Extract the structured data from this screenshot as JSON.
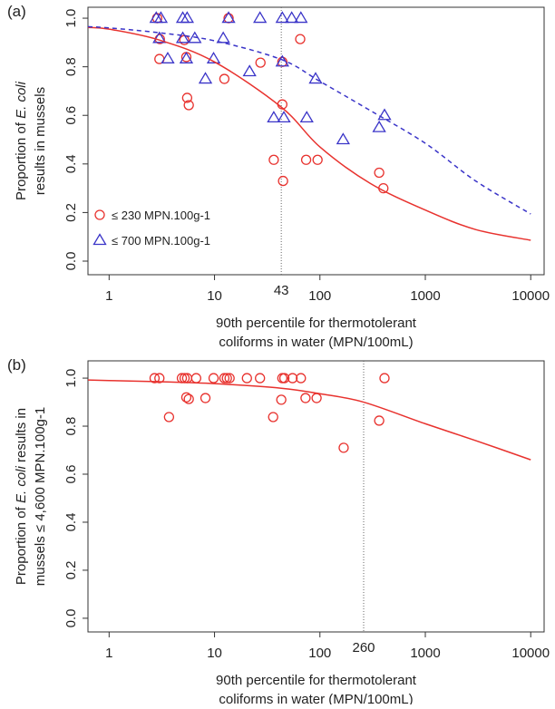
{
  "chart_data": [
    {
      "type": "scatter",
      "label": "(a)",
      "y_label": [
        [
          {
            "text": "Proportion of"
          },
          {
            "text": "E. coli",
            "italic": true
          }
        ],
        [
          {
            "text": "results in mussels"
          }
        ]
      ],
      "x_label": [
        "90th percentile for thermotolerant",
        "coliforms in water (MPN/100mL)"
      ],
      "log_x": true,
      "xlim": [
        0.63,
        13400
      ],
      "ylim": [
        -0.056,
        1.045
      ],
      "xticks": [
        1,
        10,
        100,
        1000,
        10000
      ],
      "yticks": [
        {
          "value": 0,
          "label": "0.0"
        },
        0.2,
        0.4,
        0.6,
        0.8,
        {
          "value": 1,
          "label": "1.0"
        }
      ],
      "vline": 43,
      "legend": "lower left",
      "series": [
        {
          "name": "≤ 230 MPN.100g-1",
          "color": "#e8322e",
          "marker": "circle",
          "x": [
            2.86,
            3.03,
            3.0,
            5.17,
            5.4,
            5.5,
            5.7,
            12.4,
            13.6,
            27.3,
            44,
            44,
            36.5,
            44.7,
            65,
            74,
            95,
            365,
            400
          ],
          "values": [
            1.0,
            0.914,
            0.832,
            0.91,
            0.84,
            0.672,
            0.642,
            0.75,
            1.0,
            0.817,
            0.82,
            0.645,
            0.417,
            0.33,
            0.914,
            0.417,
            0.417,
            0.364,
            0.3
          ]
        },
        {
          "name": "≤ 700 MPN.100g-1",
          "color": "#3a34c8",
          "marker": "triangle",
          "x": [
            2.8,
            3.1,
            3.0,
            3.6,
            5.0,
            5.5,
            5.0,
            5.4,
            6.5,
            8.2,
            9.8,
            12.1,
            13.6,
            21.5,
            27,
            36.5,
            45.5,
            44,
            44,
            54,
            66,
            75,
            91,
            166,
            365,
            410
          ],
          "values": [
            1.0,
            1.0,
            0.917,
            0.833,
            1.0,
            1.0,
            0.917,
            0.833,
            0.917,
            0.75,
            0.833,
            0.917,
            1.0,
            0.78,
            1.0,
            0.59,
            0.59,
            0.82,
            1.0,
            1.0,
            1.0,
            0.59,
            0.75,
            0.5,
            0.55,
            0.6
          ]
        },
        {
          "color": "#e8322e",
          "line": "solid",
          "x": [
            0.63,
            1,
            3,
            10,
            43,
            100,
            300,
            1000,
            3000,
            10000
          ],
          "values": [
            0.962,
            0.955,
            0.91,
            0.82,
            0.634,
            0.47,
            0.32,
            0.21,
            0.13,
            0.086
          ]
        },
        {
          "color": "#3a34c8",
          "line": "dashed",
          "x": [
            0.63,
            1,
            3,
            10,
            43,
            100,
            300,
            1000,
            3000,
            10000
          ],
          "values": [
            0.965,
            0.96,
            0.94,
            0.907,
            0.83,
            0.74,
            0.62,
            0.485,
            0.33,
            0.194
          ]
        }
      ]
    },
    {
      "type": "scatter",
      "label": "(b)",
      "y_label": [
        [
          {
            "text": "Proportion of"
          },
          {
            "text": "E. coli",
            "italic": true
          },
          {
            "text": "results in"
          }
        ],
        [
          {
            "text": "mussels ≤ 4,600 MPN.100g-1"
          }
        ]
      ],
      "x_label": [
        "90th percentile for thermotolerant",
        "coliforms in water (MPN/100mL)"
      ],
      "log_x": true,
      "xlim": [
        0.63,
        13400
      ],
      "ylim": [
        -0.057,
        1.072
      ],
      "xticks": [
        1,
        10,
        100,
        1000,
        10000
      ],
      "yticks": [
        {
          "value": 0,
          "label": "0.0"
        },
        0.2,
        0.4,
        0.6,
        0.8,
        {
          "value": 1,
          "label": "1.0"
        }
      ],
      "vline": 260,
      "series": [
        {
          "color": "#e8322e",
          "marker": "circle",
          "x": [
            2.7,
            3.0,
            3.7,
            4.9,
            5.2,
            5.5,
            5.4,
            5.7,
            6.7,
            8.2,
            9.8,
            12.4,
            13.1,
            13.9,
            20.3,
            27,
            36,
            43,
            44,
            46,
            55,
            66,
            73,
            93,
            168,
            365,
            410
          ],
          "values": [
            1.0,
            1.0,
            0.838,
            1.0,
            1.0,
            1.0,
            0.92,
            0.913,
            1.0,
            0.917,
            1.0,
            1.0,
            1.0,
            1.0,
            1.0,
            1.0,
            0.838,
            0.91,
            1.0,
            1.0,
            1.0,
            1.0,
            0.917,
            0.917,
            0.71,
            0.823,
            1.0
          ]
        },
        {
          "color": "#e8322e",
          "line": "solid",
          "x": [
            0.63,
            1,
            3,
            10,
            43,
            100,
            260,
            1000,
            3000,
            10000
          ],
          "values": [
            0.992,
            0.99,
            0.985,
            0.977,
            0.958,
            0.935,
            0.9,
            0.81,
            0.74,
            0.66
          ]
        }
      ]
    }
  ]
}
